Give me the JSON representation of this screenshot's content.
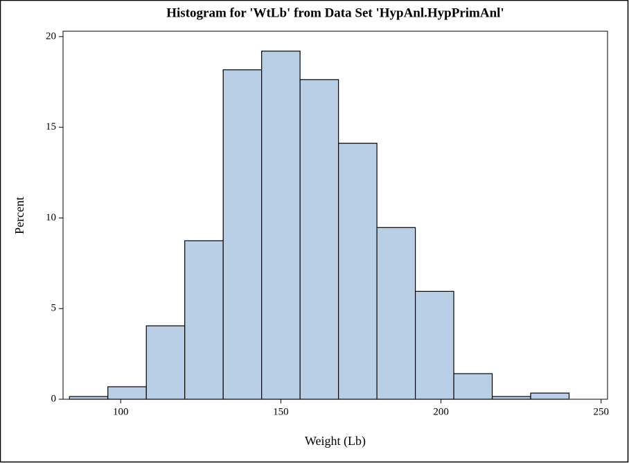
{
  "chart_data": {
    "type": "histogram",
    "title": "Histogram for 'WtLb' from Data Set 'HypAnl.HypPrimAnl'",
    "x_label": "Weight (Lb)",
    "y_label": "Percent",
    "bins": [
      84,
      96,
      108,
      120,
      132,
      144,
      156,
      168,
      180,
      192,
      204,
      216,
      228,
      240
    ],
    "values": [
      0.15,
      0.69,
      4.05,
      8.74,
      18.17,
      19.2,
      17.63,
      14.12,
      9.47,
      5.95,
      1.41,
      0.15,
      0.34
    ],
    "color": "#b9cfe6",
    "xlim": [
      82,
      252
    ],
    "xticks": [
      100,
      150,
      200,
      250
    ],
    "ylim": [
      0,
      20.3
    ],
    "yticks": [
      0,
      5,
      10,
      15,
      20
    ]
  }
}
